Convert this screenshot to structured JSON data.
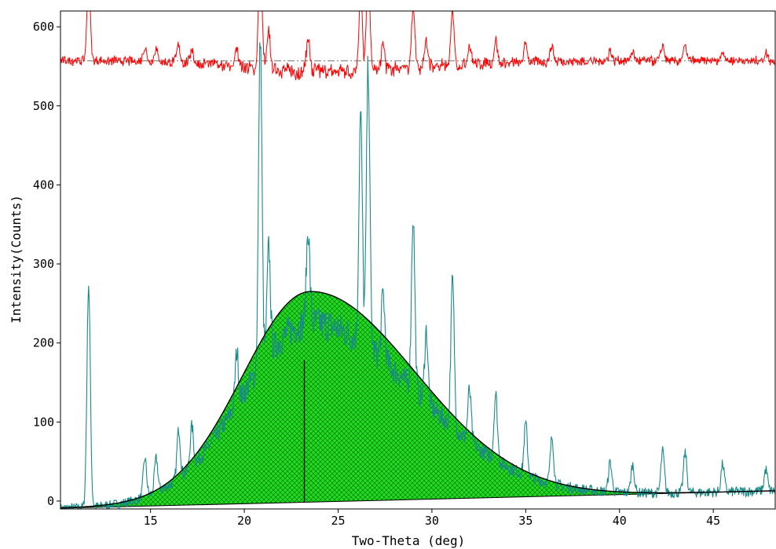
{
  "chart_data": {
    "type": "line",
    "xlabel": "Two-Theta (deg)",
    "ylabel": "Intensity(Counts)",
    "xlim": [
      10.2,
      48.3
    ],
    "ylim": [
      -10,
      620
    ],
    "x_ticks": [
      15,
      20,
      25,
      30,
      35,
      40,
      45
    ],
    "y_ticks": [
      0,
      100,
      200,
      300,
      400,
      500,
      600
    ],
    "grid": false,
    "colors": {
      "observed": "#1a8a8a",
      "fit": "#000000",
      "fill": "#22dd22",
      "difference": "#ff0000",
      "difference_baseline": "#707070",
      "marker": "#000000"
    },
    "fit_peak": {
      "center": 23.5,
      "height": 265,
      "marker_height": 178
    },
    "baseline": {
      "x": [
        10.2,
        48.3
      ],
      "y": [
        -9,
        13
      ]
    },
    "difference_offset": 557,
    "observed_peaks": [
      {
        "x": 11.7,
        "y": 275
      },
      {
        "x": 14.7,
        "y": 55
      },
      {
        "x": 15.3,
        "y": 55
      },
      {
        "x": 16.5,
        "y": 92
      },
      {
        "x": 17.2,
        "y": 95
      },
      {
        "x": 19.6,
        "y": 190
      },
      {
        "x": 20.85,
        "y": 590
      },
      {
        "x": 21.3,
        "y": 322
      },
      {
        "x": 23.4,
        "y": 345
      },
      {
        "x": 26.2,
        "y": 490
      },
      {
        "x": 26.6,
        "y": 552
      },
      {
        "x": 27.4,
        "y": 262
      },
      {
        "x": 29.0,
        "y": 360
      },
      {
        "x": 29.7,
        "y": 215
      },
      {
        "x": 31.1,
        "y": 280
      },
      {
        "x": 32.0,
        "y": 140
      },
      {
        "x": 33.4,
        "y": 135
      },
      {
        "x": 35.0,
        "y": 97
      },
      {
        "x": 36.4,
        "y": 80
      },
      {
        "x": 39.5,
        "y": 48
      },
      {
        "x": 40.7,
        "y": 45
      },
      {
        "x": 42.3,
        "y": 62
      },
      {
        "x": 43.5,
        "y": 60
      },
      {
        "x": 45.5,
        "y": 45
      },
      {
        "x": 47.8,
        "y": 38
      }
    ]
  }
}
